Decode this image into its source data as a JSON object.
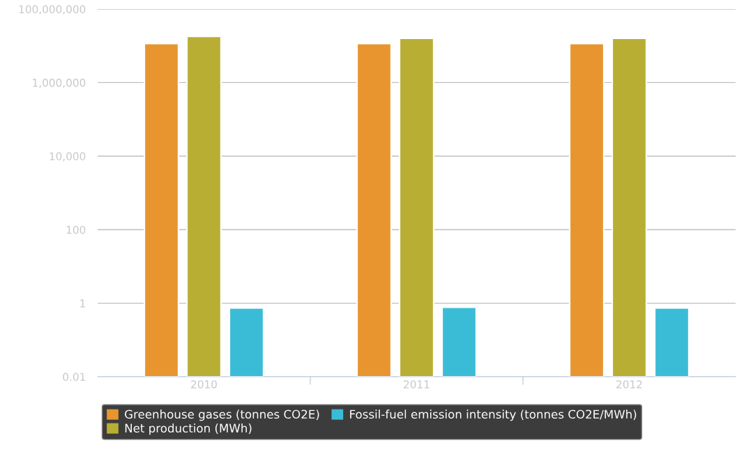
{
  "chart_data": {
    "type": "bar",
    "categories": [
      "2010",
      "2011",
      "2012"
    ],
    "log": "y",
    "ylim": [
      0.01,
      100000000
    ],
    "yticks": [
      {
        "value": 0.01,
        "label": "0.01"
      },
      {
        "value": 1,
        "label": "1"
      },
      {
        "value": 100,
        "label": "100"
      },
      {
        "value": 10000,
        "label": "10,000"
      },
      {
        "value": 1000000,
        "label": "1,000,000"
      },
      {
        "value": 100000000,
        "label": "100,000,000"
      }
    ],
    "grid": "y",
    "legend": "bottom",
    "series": [
      {
        "name": "Greenhouse gases (tonnes CO2E)",
        "color": "#e8952f",
        "values": [
          11500000,
          11500000,
          11500000
        ]
      },
      {
        "name": "Net production (MWh)",
        "color": "#b8ae33",
        "values": [
          18000000,
          16000000,
          16000000
        ]
      },
      {
        "name": "Fossil-fuel emission intensity (tonnes CO2E/MWh)",
        "color": "#3bbcd6",
        "values": [
          0.74,
          0.77,
          0.74
        ]
      }
    ]
  }
}
